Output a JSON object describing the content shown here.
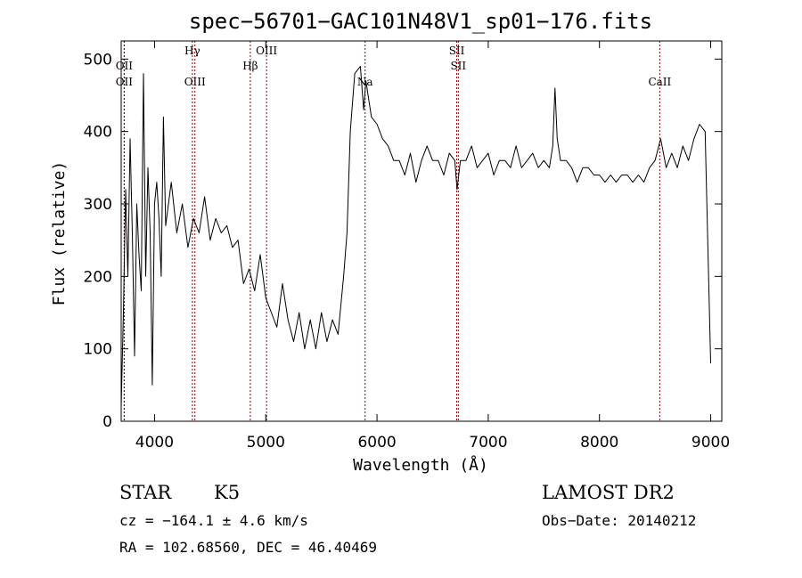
{
  "chart_data": {
    "type": "line",
    "title": "spec−56701−GAC101N48V1_sp01−176.fits",
    "xlabel": "Wavelength (Å)",
    "ylabel": "Flux (relative)",
    "xlim": [
      3700,
      9100
    ],
    "ylim": [
      0,
      525
    ],
    "x_ticks": [
      4000,
      5000,
      6000,
      7000,
      8000,
      9000
    ],
    "y_ticks": [
      0,
      100,
      200,
      300,
      400,
      500
    ],
    "grid": false,
    "series": [
      {
        "color": "#000000",
        "x": [
          3700,
          3720,
          3740,
          3760,
          3780,
          3800,
          3820,
          3840,
          3860,
          3880,
          3900,
          3920,
          3940,
          3960,
          3980,
          4000,
          4020,
          4040,
          4060,
          4080,
          4100,
          4150,
          4200,
          4250,
          4300,
          4350,
          4400,
          4450,
          4500,
          4550,
          4600,
          4650,
          4700,
          4750,
          4800,
          4850,
          4900,
          4950,
          5000,
          5050,
          5100,
          5150,
          5200,
          5250,
          5300,
          5350,
          5400,
          5450,
          5500,
          5550,
          5600,
          5650,
          5700,
          5730,
          5760,
          5800,
          5850,
          5880,
          5900,
          5950,
          6000,
          6050,
          6100,
          6150,
          6200,
          6250,
          6300,
          6350,
          6400,
          6450,
          6500,
          6550,
          6600,
          6650,
          6700,
          6720,
          6750,
          6800,
          6850,
          6900,
          6950,
          7000,
          7050,
          7100,
          7150,
          7200,
          7250,
          7300,
          7350,
          7400,
          7450,
          7500,
          7550,
          7580,
          7600,
          7620,
          7650,
          7700,
          7750,
          7800,
          7850,
          7900,
          7950,
          8000,
          8050,
          8100,
          8150,
          8200,
          8250,
          8300,
          8350,
          8400,
          8450,
          8500,
          8550,
          8600,
          8650,
          8700,
          8750,
          8800,
          8850,
          8900,
          8950,
          9000
        ],
        "y": [
          20,
          150,
          320,
          200,
          390,
          260,
          90,
          300,
          230,
          180,
          480,
          200,
          350,
          260,
          50,
          300,
          330,
          280,
          200,
          420,
          270,
          330,
          260,
          300,
          240,
          280,
          260,
          310,
          250,
          280,
          260,
          270,
          240,
          250,
          190,
          210,
          180,
          230,
          170,
          150,
          130,
          190,
          140,
          110,
          150,
          100,
          140,
          100,
          150,
          110,
          140,
          120,
          200,
          260,
          400,
          480,
          490,
          430,
          470,
          420,
          410,
          390,
          380,
          360,
          360,
          340,
          370,
          330,
          360,
          380,
          360,
          360,
          340,
          370,
          360,
          320,
          360,
          360,
          380,
          350,
          360,
          370,
          340,
          360,
          360,
          350,
          380,
          350,
          360,
          370,
          350,
          360,
          350,
          380,
          460,
          390,
          360,
          360,
          350,
          330,
          350,
          350,
          340,
          340,
          330,
          340,
          330,
          340,
          340,
          330,
          340,
          330,
          350,
          360,
          390,
          350,
          370,
          350,
          380,
          360,
          390,
          410,
          400,
          80
        ]
      }
    ],
    "line_markers": [
      {
        "label": "OII",
        "x": 3727,
        "row": 1
      },
      {
        "label": "OII",
        "x": 3727,
        "row": 2
      },
      {
        "label": "Hγ",
        "x": 4340,
        "row": 0
      },
      {
        "label": "OIII",
        "x": 4363,
        "row": 2
      },
      {
        "label": "Hβ",
        "x": 4861,
        "row": 1
      },
      {
        "label": "OIII",
        "x": 5007,
        "row": 0
      },
      {
        "label": "Na",
        "x": 5893,
        "row": 2
      },
      {
        "label": "SII",
        "x": 6717,
        "row": 0
      },
      {
        "label": "SII",
        "x": 6731,
        "row": 1
      },
      {
        "label": "CaII",
        "x": 8542,
        "row": 2
      }
    ]
  },
  "info": {
    "object_class": "STAR",
    "subclass": "K5",
    "survey": "LAMOST DR2",
    "cz": "cz = −164.1 ± 4.6 km/s",
    "obs_date": "Obs−Date: 20140212",
    "radec": "RA = 102.68560, DEC =  46.40469"
  },
  "colors": {
    "spectrum": "#000000",
    "marker_line": "#8b0000",
    "axis": "#000000",
    "background": "#ffffff"
  }
}
